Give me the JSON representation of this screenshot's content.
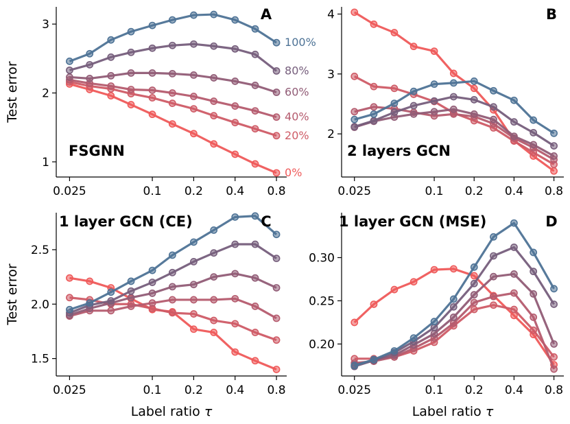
{
  "chart_data": [
    {
      "type": "line",
      "panel": "A",
      "title": "FSGNN",
      "xlabel": "",
      "ylabel": "Test error",
      "x": [
        0.025,
        0.035,
        0.05,
        0.07,
        0.1,
        0.14,
        0.2,
        0.28,
        0.4,
        0.56,
        0.8
      ],
      "xscale": "log",
      "xlim": [
        0.02,
        0.95
      ],
      "xticks": [
        0.025,
        0.1,
        0.2,
        0.4,
        0.8
      ],
      "xtick_labels": [
        "0.025",
        "0.1",
        "0.2",
        "0.4",
        "0.8"
      ],
      "ylim": [
        0.78,
        3.25
      ],
      "yticks": [
        1,
        2,
        3
      ],
      "ytick_labels": [
        "1",
        "2",
        "3"
      ],
      "series": [
        {
          "name": "100%",
          "color": "#4e7396",
          "values": [
            2.46,
            2.57,
            2.77,
            2.89,
            2.98,
            3.06,
            3.13,
            3.14,
            3.06,
            2.93,
            2.73
          ]
        },
        {
          "name": "80%",
          "color": "#765e7c",
          "values": [
            2.33,
            2.41,
            2.52,
            2.59,
            2.65,
            2.69,
            2.71,
            2.68,
            2.64,
            2.56,
            2.32
          ]
        },
        {
          "name": "60%",
          "color": "#915c76",
          "values": [
            2.23,
            2.21,
            2.25,
            2.29,
            2.29,
            2.28,
            2.26,
            2.22,
            2.17,
            2.11,
            2.01
          ]
        },
        {
          "name": "40%",
          "color": "#b55b6e",
          "values": [
            2.19,
            2.14,
            2.1,
            2.05,
            2.04,
            2.0,
            1.95,
            1.88,
            1.81,
            1.74,
            1.65
          ]
        },
        {
          "name": "20%",
          "color": "#cf5b66",
          "values": [
            2.16,
            2.1,
            2.06,
            1.99,
            1.93,
            1.85,
            1.77,
            1.67,
            1.57,
            1.48,
            1.38
          ]
        },
        {
          "name": "0%",
          "color": "#ef5a5a",
          "values": [
            2.13,
            2.05,
            1.96,
            1.83,
            1.69,
            1.55,
            1.41,
            1.26,
            1.11,
            0.97,
            0.84
          ]
        }
      ]
    },
    {
      "type": "line",
      "panel": "B",
      "title": "2 layers GCN",
      "xlabel": "",
      "ylabel": "",
      "x": [
        0.025,
        0.035,
        0.05,
        0.07,
        0.1,
        0.14,
        0.2,
        0.28,
        0.4,
        0.56,
        0.8
      ],
      "xscale": "log",
      "xlim": [
        0.02,
        0.95
      ],
      "xticks": [
        0.025,
        0.1,
        0.2,
        0.4,
        0.8
      ],
      "xtick_labels": [
        "0.025",
        "0.1",
        "0.2",
        "0.4",
        "0.8"
      ],
      "ylim": [
        1.28,
        4.12
      ],
      "yticks": [
        2,
        3,
        4
      ],
      "ytick_labels": [
        "2",
        "3",
        "4"
      ],
      "series": [
        {
          "color": "#4e7396",
          "values": [
            2.24,
            2.33,
            2.51,
            2.71,
            2.83,
            2.85,
            2.88,
            2.72,
            2.56,
            2.23,
            2.01
          ]
        },
        {
          "color": "#765e7c",
          "values": [
            2.12,
            2.22,
            2.36,
            2.47,
            2.55,
            2.62,
            2.57,
            2.45,
            2.2,
            2.02,
            1.8
          ]
        },
        {
          "color": "#915c76",
          "values": [
            2.11,
            2.21,
            2.28,
            2.33,
            2.37,
            2.41,
            2.33,
            2.24,
            1.96,
            1.82,
            1.63
          ]
        },
        {
          "color": "#b55b6e",
          "values": [
            2.37,
            2.45,
            2.42,
            2.36,
            2.3,
            2.33,
            2.29,
            2.17,
            1.93,
            1.77,
            1.57
          ]
        },
        {
          "color": "#cf5b66",
          "values": [
            2.96,
            2.79,
            2.76,
            2.66,
            2.54,
            2.35,
            2.22,
            2.1,
            1.88,
            1.69,
            1.49
          ]
        },
        {
          "color": "#ef5a5a",
          "values": [
            4.03,
            3.83,
            3.69,
            3.46,
            3.38,
            3.01,
            2.76,
            2.4,
            1.89,
            1.63,
            1.38
          ]
        }
      ]
    },
    {
      "type": "line",
      "panel": "C",
      "title": "1 layer GCN (CE)",
      "xlabel": "Label ratio τ",
      "ylabel": "Test error",
      "x": [
        0.025,
        0.035,
        0.05,
        0.07,
        0.1,
        0.14,
        0.2,
        0.28,
        0.4,
        0.56,
        0.8
      ],
      "xscale": "log",
      "xlim": [
        0.02,
        0.95
      ],
      "xticks": [
        0.025,
        0.1,
        0.2,
        0.4,
        0.8
      ],
      "xtick_labels": [
        "0.025",
        "0.1",
        "0.2",
        "0.4",
        "0.8"
      ],
      "ylim": [
        1.34,
        2.84
      ],
      "yticks": [
        1.5,
        2.0,
        2.5
      ],
      "ytick_labels": [
        "1.5",
        "2.0",
        "2.5"
      ],
      "series": [
        {
          "color": "#4e7396",
          "values": [
            1.95,
            2.01,
            2.11,
            2.21,
            2.31,
            2.45,
            2.57,
            2.68,
            2.8,
            2.81,
            2.64
          ]
        },
        {
          "color": "#765e7c",
          "values": [
            1.92,
            1.99,
            2.03,
            2.12,
            2.2,
            2.29,
            2.39,
            2.47,
            2.55,
            2.55,
            2.42
          ]
        },
        {
          "color": "#915c76",
          "values": [
            1.9,
            1.96,
            2.01,
            2.06,
            2.1,
            2.16,
            2.18,
            2.25,
            2.28,
            2.24,
            2.15
          ]
        },
        {
          "color": "#b55b6e",
          "values": [
            1.89,
            1.94,
            1.94,
            1.98,
            2.01,
            2.04,
            2.04,
            2.04,
            2.05,
            1.98,
            1.87
          ]
        },
        {
          "color": "#cf5b66",
          "values": [
            2.06,
            2.04,
            2.0,
            2.0,
            1.96,
            1.92,
            1.91,
            1.85,
            1.82,
            1.74,
            1.67
          ]
        },
        {
          "color": "#ef5a5a",
          "values": [
            2.24,
            2.21,
            2.15,
            2.05,
            1.95,
            1.93,
            1.77,
            1.74,
            1.56,
            1.48,
            1.4
          ]
        }
      ]
    },
    {
      "type": "line",
      "panel": "D",
      "title": "1 layer GCN (MSE)",
      "xlabel": "Label ratio τ",
      "ylabel": "",
      "x": [
        0.025,
        0.035,
        0.05,
        0.07,
        0.1,
        0.14,
        0.2,
        0.28,
        0.4,
        0.56,
        0.8
      ],
      "xscale": "log",
      "xlim": [
        0.02,
        0.95
      ],
      "xticks": [
        0.025,
        0.1,
        0.2,
        0.4,
        0.8
      ],
      "xtick_labels": [
        "0.025",
        "0.1",
        "0.2",
        "0.4",
        "0.8"
      ],
      "ylim": [
        0.163,
        0.352
      ],
      "yticks": [
        0.2,
        0.25,
        0.3
      ],
      "ytick_labels": [
        "0.20",
        "0.25",
        "0.30"
      ],
      "series": [
        {
          "color": "#4e7396",
          "values": [
            0.175,
            0.182,
            0.192,
            0.207,
            0.226,
            0.252,
            0.289,
            0.324,
            0.34,
            0.306,
            0.264
          ]
        },
        {
          "color": "#765e7c",
          "values": [
            0.174,
            0.181,
            0.19,
            0.203,
            0.219,
            0.243,
            0.27,
            0.302,
            0.312,
            0.284,
            0.246
          ]
        },
        {
          "color": "#915c76",
          "values": [
            0.176,
            0.181,
            0.187,
            0.199,
            0.212,
            0.231,
            0.257,
            0.278,
            0.281,
            0.258,
            0.2
          ]
        },
        {
          "color": "#b55b6e",
          "values": [
            0.178,
            0.18,
            0.185,
            0.195,
            0.207,
            0.224,
            0.248,
            0.255,
            0.259,
            0.231,
            0.171
          ]
        },
        {
          "color": "#cf5b66",
          "values": [
            0.183,
            0.183,
            0.185,
            0.192,
            0.202,
            0.221,
            0.24,
            0.245,
            0.24,
            0.216,
            0.185
          ]
        },
        {
          "color": "#ef5a5a",
          "values": [
            0.225,
            0.246,
            0.263,
            0.272,
            0.286,
            0.287,
            0.279,
            0.256,
            0.233,
            0.211,
            0.176
          ]
        }
      ]
    }
  ]
}
